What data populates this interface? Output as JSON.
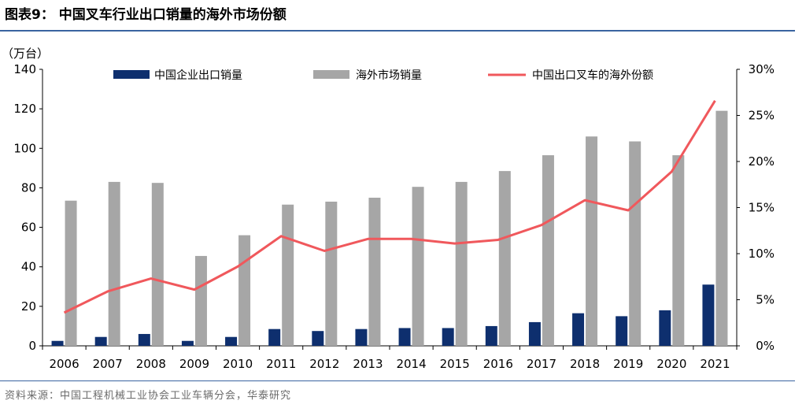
{
  "header": {
    "title": "图表9：  中国叉车行业出口销量的海外市场份额"
  },
  "footer": {
    "source": "资料来源：中国工程机械工业协会工业车辆分会，华泰研究"
  },
  "chart_data": {
    "type": "bar+line",
    "title": "中国叉车行业出口销量的海外市场份额",
    "ylabel_left": "（万台）",
    "categories": [
      "2006",
      "2007",
      "2008",
      "2009",
      "2010",
      "2011",
      "2012",
      "2013",
      "2014",
      "2015",
      "2016",
      "2017",
      "2018",
      "2019",
      "2020",
      "2021"
    ],
    "ylim_left": [
      0,
      140
    ],
    "yticks_left": [
      "0",
      "20",
      "40",
      "60",
      "80",
      "100",
      "120",
      "140"
    ],
    "ylim_right": [
      0,
      30
    ],
    "yticks_right": [
      "0%",
      "5%",
      "10%",
      "15%",
      "20%",
      "25%",
      "30%"
    ],
    "series": [
      {
        "name": "中国企业出口销量",
        "type": "bar",
        "color": "#0e2f6e",
        "values": [
          2.5,
          4.5,
          6,
          2.5,
          4.5,
          8.5,
          7.5,
          8.5,
          9,
          9,
          10,
          12,
          16.5,
          15,
          18,
          31
        ]
      },
      {
        "name": "海外市场销量",
        "type": "bar",
        "color": "#a6a6a6",
        "values": [
          73.5,
          83,
          82.5,
          45.5,
          56,
          71.5,
          73,
          75,
          80.5,
          83,
          88.5,
          96.5,
          106,
          103.5,
          96.5,
          119
        ]
      },
      {
        "name": "中国出口叉车的海外份额",
        "type": "line",
        "axis": "right",
        "color": "#f0585c",
        "values": [
          3.6,
          5.9,
          7.3,
          6.1,
          8.6,
          11.9,
          10.3,
          11.6,
          11.6,
          11.1,
          11.5,
          13.1,
          15.8,
          14.7,
          18.9,
          26.6
        ]
      }
    ]
  }
}
